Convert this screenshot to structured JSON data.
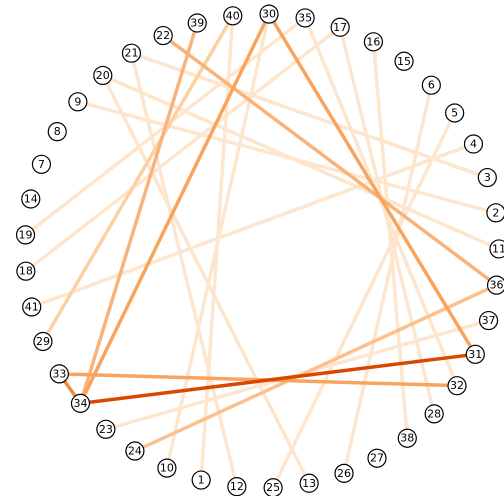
{
  "graph": {
    "nodes": [
      "30",
      "35",
      "17",
      "16",
      "15",
      "6",
      "5",
      "4",
      "3",
      "2",
      "11",
      "36",
      "37",
      "31",
      "32",
      "28",
      "38",
      "27",
      "26",
      "13",
      "25",
      "12",
      "1",
      "10",
      "24",
      "23",
      "34",
      "33",
      "29",
      "41",
      "18",
      "19",
      "14",
      "7",
      "8",
      "9",
      "20",
      "21",
      "22",
      "39",
      "40"
    ],
    "edges": [
      {
        "source": "35",
        "target": "32",
        "color": "#fee6ce"
      },
      {
        "source": "17",
        "target": "28",
        "color": "#fee6ce"
      },
      {
        "source": "16",
        "target": "38",
        "color": "#fee6ce"
      },
      {
        "source": "6",
        "target": "26",
        "color": "#fee6ce"
      },
      {
        "source": "2",
        "target": "9",
        "color": "#fee6ce"
      },
      {
        "source": "3",
        "target": "21",
        "color": "#fee6ce"
      },
      {
        "source": "11",
        "target": "20",
        "color": "#fee6ce"
      },
      {
        "source": "37",
        "target": "23",
        "color": "#fee6ce"
      },
      {
        "source": "40",
        "target": "1",
        "color": "#fee6ce"
      },
      {
        "source": "35",
        "target": "19",
        "color": "#fee6ce"
      },
      {
        "source": "17",
        "target": "18",
        "color": "#fee6ce"
      },
      {
        "source": "30",
        "target": "10",
        "color": "#fee6ce"
      },
      {
        "source": "21",
        "target": "12",
        "color": "#fee6ce"
      },
      {
        "source": "20",
        "target": "13",
        "color": "#fee6ce"
      },
      {
        "source": "4",
        "target": "41",
        "color": "#fee6ce"
      },
      {
        "source": "5",
        "target": "25",
        "color": "#fee6ce"
      },
      {
        "source": "40",
        "target": "29",
        "color": "#fdd0a2"
      },
      {
        "source": "36",
        "target": "24",
        "color": "#fdc08c"
      },
      {
        "source": "22",
        "target": "36",
        "color": "#f9b37a"
      },
      {
        "source": "39",
        "target": "34",
        "color": "#f9b37a"
      },
      {
        "source": "30",
        "target": "34",
        "color": "#f9a45e"
      },
      {
        "source": "30",
        "target": "31",
        "color": "#f9a45e"
      },
      {
        "source": "33",
        "target": "32",
        "color": "#f9a45e"
      },
      {
        "source": "33",
        "target": "34",
        "color": "#f08a3c"
      },
      {
        "source": "34",
        "target": "31",
        "color": "#d94801"
      }
    ]
  }
}
